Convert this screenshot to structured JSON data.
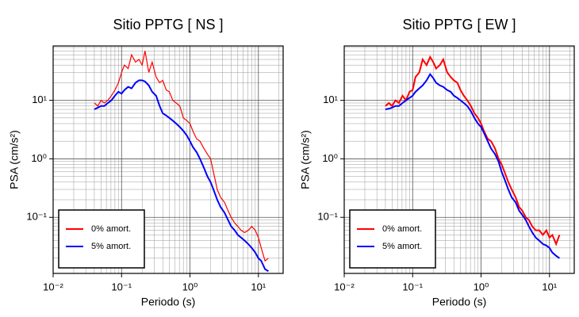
{
  "chart_data": [
    {
      "type": "line",
      "title": "Sitio PPTG [ NS ]",
      "x_label": "Periodo (s)",
      "y_label": "PSA (cm/s²)",
      "x_scale": "log",
      "y_scale": "log",
      "grid": true,
      "legend": "lower left",
      "xlim": [
        0.01,
        23
      ],
      "ylim": [
        0.011,
        85
      ],
      "xticks": [
        {
          "value": 0.01,
          "label": "10⁻²"
        },
        {
          "value": 0.1,
          "label": "10⁻¹"
        },
        {
          "value": 1,
          "label": "10⁰"
        },
        {
          "value": 10,
          "label": "10¹"
        }
      ],
      "yticks": [
        {
          "value": 0.1,
          "label": "10⁻¹"
        },
        {
          "value": 1,
          "label": "10⁰"
        },
        {
          "value": 10,
          "label": "10¹"
        }
      ],
      "x": [
        0.04,
        0.045,
        0.05,
        0.056,
        0.063,
        0.071,
        0.08,
        0.09,
        0.1,
        0.11,
        0.125,
        0.14,
        0.16,
        0.18,
        0.2,
        0.22,
        0.25,
        0.28,
        0.32,
        0.36,
        0.4,
        0.45,
        0.5,
        0.56,
        0.63,
        0.71,
        0.8,
        0.9,
        1,
        1.1,
        1.25,
        1.4,
        1.6,
        1.8,
        2,
        2.2,
        2.5,
        2.8,
        3.2,
        3.6,
        4,
        4.5,
        5,
        5.6,
        6.3,
        7.1,
        8,
        9,
        10,
        11,
        12.5,
        14
      ],
      "series": [
        {
          "name": "0% amort.",
          "color": "#ff0000",
          "line_width": 1.2,
          "values": [
            9,
            8,
            10,
            9,
            10,
            12,
            15,
            20,
            30,
            40,
            35,
            60,
            45,
            50,
            40,
            70,
            30,
            45,
            25,
            20,
            22,
            15,
            14,
            10,
            9,
            8,
            5,
            4.5,
            4,
            3,
            2.2,
            2,
            1.5,
            1.2,
            1,
            0.6,
            0.3,
            0.22,
            0.18,
            0.13,
            0.1,
            0.08,
            0.07,
            0.06,
            0.055,
            0.06,
            0.07,
            0.06,
            0.045,
            0.03,
            0.018,
            0.02
          ]
        },
        {
          "name": "5% amort.",
          "color": "#0000ff",
          "line_width": 2,
          "values": [
            7,
            7.5,
            8,
            8,
            9,
            10,
            12,
            14,
            13,
            15,
            17,
            16,
            20,
            22,
            22,
            21,
            18,
            14,
            12,
            8,
            6,
            5.5,
            5,
            4.5,
            4,
            3.5,
            3,
            2.5,
            2,
            1.6,
            1.3,
            1,
            0.7,
            0.5,
            0.4,
            0.3,
            0.2,
            0.15,
            0.12,
            0.09,
            0.07,
            0.06,
            0.05,
            0.045,
            0.04,
            0.035,
            0.03,
            0.025,
            0.02,
            0.018,
            0.013,
            0.012
          ]
        }
      ]
    },
    {
      "type": "line",
      "title": "Sitio PPTG [ EW ]",
      "x_label": "Periodo (s)",
      "y_label": "PSA (cm/s²)",
      "x_scale": "log",
      "y_scale": "log",
      "grid": true,
      "legend": "lower left",
      "xlim": [
        0.01,
        23
      ],
      "ylim": [
        0.011,
        85
      ],
      "xticks": [
        {
          "value": 0.01,
          "label": "10⁻²"
        },
        {
          "value": 0.1,
          "label": "10⁻¹"
        },
        {
          "value": 1,
          "label": "10⁰"
        },
        {
          "value": 10,
          "label": "10¹"
        }
      ],
      "yticks": [
        {
          "value": 0.1,
          "label": "10⁻¹"
        },
        {
          "value": 1,
          "label": "10⁰"
        },
        {
          "value": 10,
          "label": "10¹"
        }
      ],
      "x": [
        0.04,
        0.045,
        0.05,
        0.056,
        0.063,
        0.071,
        0.08,
        0.09,
        0.1,
        0.11,
        0.125,
        0.14,
        0.16,
        0.18,
        0.2,
        0.22,
        0.25,
        0.28,
        0.32,
        0.36,
        0.4,
        0.45,
        0.5,
        0.56,
        0.63,
        0.71,
        0.8,
        0.9,
        1,
        1.1,
        1.25,
        1.4,
        1.6,
        1.8,
        2,
        2.2,
        2.5,
        2.8,
        3.2,
        3.6,
        4,
        4.5,
        5,
        5.6,
        6.3,
        7.1,
        8,
        9,
        10,
        11,
        12.5,
        14
      ],
      "series": [
        {
          "name": "0% amort.",
          "color": "#ff0000",
          "line_width": 2,
          "values": [
            8,
            9,
            8,
            10,
            9,
            12,
            10,
            14,
            15,
            25,
            30,
            50,
            40,
            55,
            45,
            35,
            40,
            50,
            30,
            25,
            22,
            20,
            15,
            12,
            10,
            8,
            6,
            5,
            4,
            3,
            2.2,
            2,
            1.5,
            1,
            0.8,
            0.6,
            0.4,
            0.3,
            0.22,
            0.15,
            0.13,
            0.1,
            0.09,
            0.07,
            0.06,
            0.06,
            0.05,
            0.06,
            0.045,
            0.05,
            0.035,
            0.05
          ]
        },
        {
          "name": "5% amort.",
          "color": "#0000ff",
          "line_width": 2,
          "values": [
            7,
            7.2,
            7.5,
            8,
            8,
            9,
            10,
            11,
            12,
            14,
            16,
            18,
            22,
            28,
            24,
            20,
            18,
            17,
            15,
            14,
            12,
            11,
            10,
            9,
            8,
            6.5,
            5,
            4,
            3.5,
            2.8,
            2,
            1.5,
            1.2,
            0.9,
            0.6,
            0.45,
            0.3,
            0.22,
            0.18,
            0.13,
            0.11,
            0.09,
            0.07,
            0.055,
            0.045,
            0.04,
            0.035,
            0.033,
            0.03,
            0.025,
            0.022,
            0.02
          ]
        }
      ]
    }
  ]
}
